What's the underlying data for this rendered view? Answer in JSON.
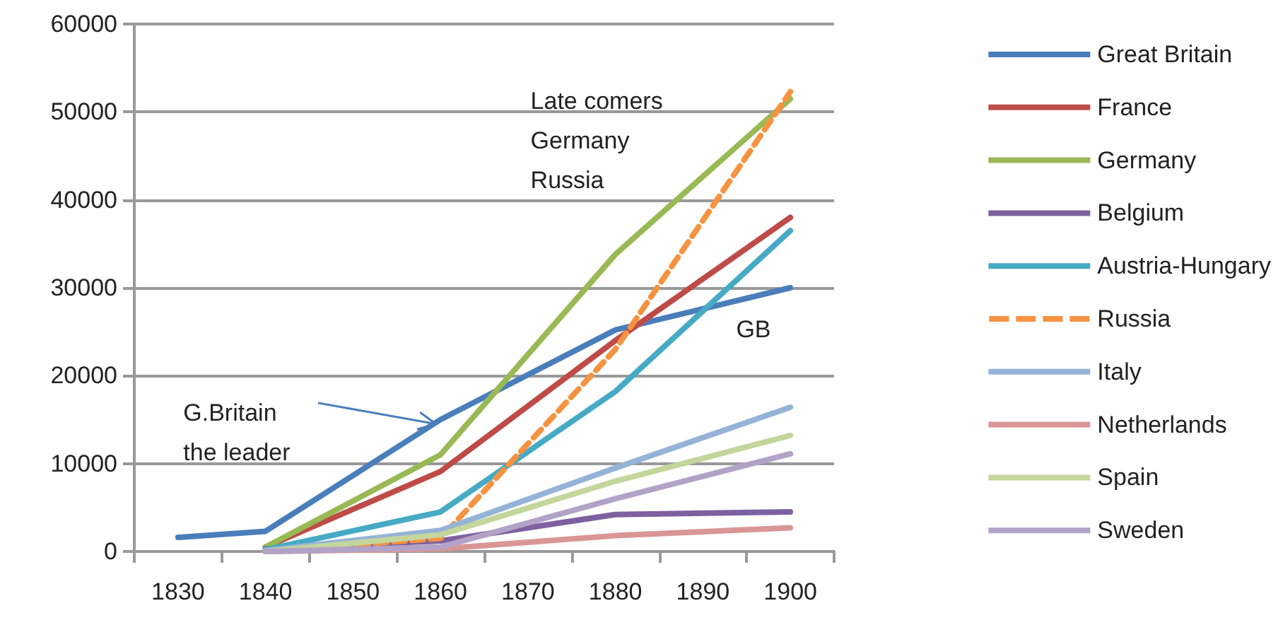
{
  "chart_data": {
    "type": "line",
    "x": [
      1830,
      1840,
      1860,
      1880,
      1900
    ],
    "xlim": [
      1825,
      1905
    ],
    "xticks": [
      {
        "value": 1825,
        "label": null
      },
      1830,
      {
        "value": 1835,
        "label": null
      },
      1840,
      {
        "value": 1845,
        "label": null
      },
      1850,
      {
        "value": 1855,
        "label": null
      },
      1860,
      {
        "value": 1865,
        "label": null
      },
      1870,
      {
        "value": 1875,
        "label": null
      },
      1880,
      {
        "value": 1885,
        "label": null
      },
      1890,
      {
        "value": 1895,
        "label": null
      },
      1900,
      {
        "value": 1905,
        "label": null
      }
    ],
    "ylim": [
      0,
      60000
    ],
    "yticks": [
      0,
      10000,
      20000,
      30000,
      40000,
      50000,
      60000
    ],
    "grid": "y",
    "legend": "right",
    "marker": "none",
    "series": [
      {
        "name": "Great Britain",
        "color": "#4a7ebb",
        "values": [
          1600,
          2300,
          15000,
          25200,
          30000
        ]
      },
      {
        "name": "France",
        "color": "#be4b48",
        "values": [
          null,
          500,
          9100,
          24000,
          38000
        ]
      },
      {
        "name": "Germany",
        "color": "#98b954",
        "values": [
          null,
          500,
          11000,
          33800,
          51500
        ]
      },
      {
        "name": "Belgium",
        "color": "#7d60a0",
        "values": [
          null,
          300,
          1200,
          4200,
          4500
        ]
      },
      {
        "name": "Austria-Hungary",
        "color": "#46aac5",
        "values": [
          null,
          200,
          4500,
          18200,
          36500
        ]
      },
      {
        "name": "Russia",
        "color": "#f69240",
        "line_style": "dashed",
        "values": [
          null,
          0,
          1500,
          23000,
          52300
        ]
      },
      {
        "name": "Italy",
        "color": "#95b3d7",
        "values": [
          null,
          100,
          2400,
          9500,
          16400
        ]
      },
      {
        "name": "Netherlands",
        "color": "#d99694",
        "values": [
          null,
          0,
          300,
          1800,
          2700
        ]
      },
      {
        "name": "Spain",
        "color": "#c3d69b",
        "values": [
          null,
          0,
          1900,
          8000,
          13200
        ]
      },
      {
        "name": "Sweden",
        "color": "#b3a2c7",
        "values": [
          null,
          0,
          500,
          6000,
          11100
        ]
      }
    ],
    "annotations": [
      "Late comers Germany Russia",
      "GB",
      {
        "text": "G.Britain the leader",
        "x": 1859.5,
        "y": 14500
      }
    ]
  }
}
